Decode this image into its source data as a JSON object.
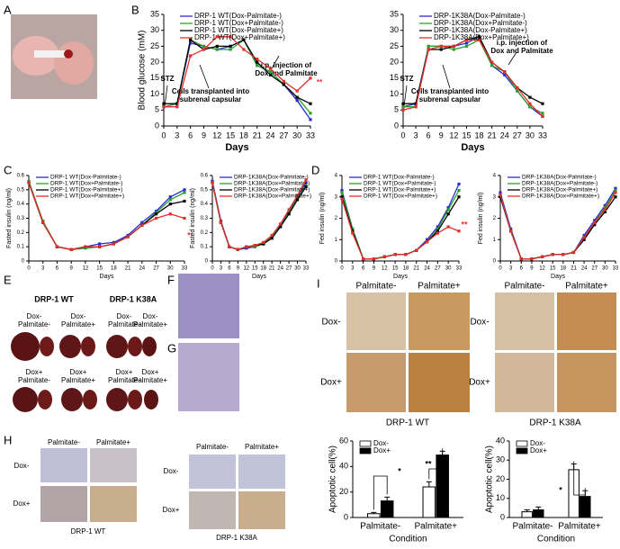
{
  "figure": {
    "panel_labels": [
      "A",
      "B",
      "C",
      "D",
      "E",
      "F",
      "G",
      "H",
      "I"
    ],
    "texts": [
      "DRP-1 WT",
      "DRP-1 K38A",
      "Dox-",
      "Palmitate-",
      "Dox-",
      "Palmitate+",
      "Dox-",
      "Palmitate-",
      "Dox-",
      "Palmitate+",
      "Dox+",
      "Palmitate-",
      "Dox+",
      "Palmitate+",
      "Dox+",
      "Palmitate-",
      "Dox+",
      "Palmitate+",
      "Palmitate-",
      "Palmitate+",
      "Palmitate-",
      "Palmitate+",
      "Dox-",
      "Dox+",
      "Dox-",
      "Dox+",
      "DRP-1 WT",
      "DRP-1 K38A",
      "Palmitate-",
      "Palmitate+",
      "Palmitate-",
      "Palmitate+",
      "Dox-",
      "Dox+",
      "Dox-",
      "Dox+",
      "DRP-1 WT",
      "DRP-1 K38A"
    ]
  },
  "chart_data": [
    {
      "type": "line",
      "ylabel": "Blood glucose (mM)",
      "xlabel": "Days",
      "x": [
        0,
        3,
        6,
        9,
        12,
        15,
        18,
        21,
        24,
        27,
        30,
        33
      ],
      "xlim": [
        0,
        33
      ],
      "xticks": [
        0,
        3,
        6,
        9,
        12,
        15,
        18,
        21,
        24,
        27,
        30,
        33
      ],
      "ylim": [
        0,
        35
      ],
      "yticks": [
        0,
        5,
        10,
        15,
        20,
        25,
        30,
        35
      ],
      "annotations": [
        "STZ",
        "Cells transplanted into",
        "subrenal capsular",
        "i.p. injection of",
        "Dox and Palmitate",
        "**"
      ],
      "series": [
        {
          "name": "DRP-1 WT(Dox-Palmitate-)",
          "color": "#2b2bd6",
          "values": [
            6,
            7,
            26,
            25,
            24,
            25,
            27,
            19,
            17,
            13,
            8,
            2
          ]
        },
        {
          "name": "DRP-1 WT(Dox+Palmitate-)",
          "color": "#2ca02c",
          "values": [
            6,
            7,
            27,
            25,
            24,
            24,
            27,
            19,
            17,
            13,
            9,
            4
          ]
        },
        {
          "name": "DRP-1 WT(Dox-Palmitate+)",
          "color": "#000000",
          "values": [
            7,
            7,
            27,
            24,
            25,
            25,
            27,
            20,
            16,
            13,
            9,
            7
          ]
        },
        {
          "name": "DRP-1 WT(Dox+Palmitate+)",
          "color": "#e0302a",
          "values": [
            6,
            6,
            22,
            24,
            28,
            28,
            24,
            21,
            18,
            14,
            11,
            15
          ]
        }
      ]
    },
    {
      "type": "line",
      "xlabel": "Days",
      "x": [
        0,
        3,
        6,
        9,
        12,
        15,
        18,
        21,
        24,
        27,
        30,
        33
      ],
      "xlim": [
        0,
        33
      ],
      "xticks": [
        0,
        3,
        6,
        9,
        12,
        15,
        18,
        21,
        24,
        27,
        30,
        33
      ],
      "ylim": [
        0,
        35
      ],
      "yticks": [
        0,
        5,
        10,
        15,
        20,
        25,
        30,
        35
      ],
      "annotations": [
        "STZ",
        "Cells transplanted into",
        "subrenal capsular",
        "i.p. injection of",
        "Dox and Palmitate"
      ],
      "series": [
        {
          "name": "DRP-1K38A(Dox-Palmitate-)",
          "color": "#2b2bd6",
          "values": [
            6,
            7,
            25,
            25,
            25,
            26,
            28,
            19,
            16,
            11,
            6,
            3
          ]
        },
        {
          "name": "DRP-1K38A(Dox+Palmitate-)",
          "color": "#2ca02c",
          "values": [
            6,
            6,
            25,
            25,
            24,
            25,
            27,
            19,
            17,
            11,
            6,
            4
          ]
        },
        {
          "name": "DRP-1K38A(Dox-Palmitate+)",
          "color": "#000000",
          "values": [
            7,
            7,
            24,
            24,
            25,
            27,
            28,
            20,
            17,
            12,
            9,
            7
          ]
        },
        {
          "name": "DRP-1K38A(Dox+Palmitate+)",
          "color": "#e0302a",
          "values": [
            5,
            6,
            24,
            25,
            25,
            27,
            27,
            20,
            17,
            12,
            7,
            3
          ]
        }
      ]
    },
    {
      "type": "line",
      "ylabel": "Fasted insulin (ng/ml)",
      "xlabel": "Days",
      "x": [
        0,
        3,
        6,
        9,
        12,
        15,
        18,
        21,
        24,
        27,
        30,
        33
      ],
      "xlim": [
        0,
        33
      ],
      "xticks": [
        0,
        3,
        6,
        9,
        12,
        15,
        18,
        21,
        24,
        27,
        30,
        33
      ],
      "ylim": [
        0,
        0.6
      ],
      "yticks": [
        0,
        0.1,
        0.2,
        0.3,
        0.4,
        0.5,
        0.6
      ],
      "annotations": [
        "*"
      ],
      "series": [
        {
          "name": "DRP-1 WT(Dox-Palmitate-)",
          "color": "#2b2bd6",
          "values": [
            0.55,
            0.27,
            0.1,
            0.08,
            0.1,
            0.12,
            0.13,
            0.18,
            0.27,
            0.35,
            0.45,
            0.5
          ]
        },
        {
          "name": "DRP-1 WT(Dox+Palmitate-)",
          "color": "#2ca02c",
          "values": [
            0.56,
            0.28,
            0.1,
            0.08,
            0.09,
            0.1,
            0.12,
            0.17,
            0.25,
            0.34,
            0.43,
            0.48
          ]
        },
        {
          "name": "DRP-1 WT(Dox-Palmitate+)",
          "color": "#000000",
          "values": [
            0.55,
            0.27,
            0.1,
            0.08,
            0.1,
            0.1,
            0.12,
            0.17,
            0.25,
            0.33,
            0.4,
            0.42
          ]
        },
        {
          "name": "DRP-1 WT(Dox+Palmitate+)",
          "color": "#e0302a",
          "values": [
            0.55,
            0.27,
            0.1,
            0.08,
            0.1,
            0.1,
            0.12,
            0.17,
            0.25,
            0.3,
            0.33,
            0.3
          ]
        }
      ]
    },
    {
      "type": "line",
      "ylabel": "Fasted insulin (ng/ml)",
      "xlabel": "Days",
      "x": [
        0,
        3,
        6,
        9,
        12,
        15,
        18,
        21,
        24,
        27,
        30,
        33
      ],
      "xlim": [
        0,
        33
      ],
      "xticks": [
        0,
        3,
        6,
        9,
        12,
        15,
        18,
        21,
        24,
        27,
        30,
        33
      ],
      "ylim": [
        0,
        0.6
      ],
      "yticks": [
        0,
        0.1,
        0.2,
        0.3,
        0.4,
        0.5,
        0.6
      ],
      "series": [
        {
          "name": "DRP-1K38A(Dox-Palmitate-)",
          "color": "#2b2bd6",
          "values": [
            0.56,
            0.28,
            0.1,
            0.08,
            0.09,
            0.1,
            0.12,
            0.17,
            0.25,
            0.35,
            0.45,
            0.55
          ]
        },
        {
          "name": "DRP-1K38A(Dox+Palmitate-)",
          "color": "#2ca02c",
          "values": [
            0.55,
            0.27,
            0.1,
            0.08,
            0.1,
            0.1,
            0.12,
            0.17,
            0.24,
            0.34,
            0.44,
            0.53
          ]
        },
        {
          "name": "DRP-1K38A(Dox-Palmitate+)",
          "color": "#000000",
          "values": [
            0.55,
            0.27,
            0.1,
            0.08,
            0.1,
            0.11,
            0.12,
            0.16,
            0.24,
            0.33,
            0.43,
            0.52
          ]
        },
        {
          "name": "DRP-1K38A(Dox+Palmitate+)",
          "color": "#e0302a",
          "values": [
            0.55,
            0.27,
            0.1,
            0.08,
            0.1,
            0.11,
            0.13,
            0.18,
            0.26,
            0.36,
            0.46,
            0.57
          ]
        }
      ]
    },
    {
      "type": "line",
      "ylabel": "Fed insulin (ng/ml)",
      "xlabel": "Days",
      "x": [
        0,
        3,
        6,
        9,
        12,
        15,
        18,
        21,
        24,
        27,
        30,
        33
      ],
      "xlim": [
        0,
        33
      ],
      "xticks": [
        0,
        3,
        6,
        9,
        12,
        15,
        18,
        21,
        24,
        27,
        30,
        33
      ],
      "ylim": [
        0,
        4
      ],
      "yticks": [
        0,
        1,
        2,
        3,
        4
      ],
      "annotations": [
        "**"
      ],
      "series": [
        {
          "name": "DRP-1 WT(Dox-Palmitate-)",
          "color": "#2b2bd6",
          "values": [
            3.3,
            1.5,
            0.1,
            0.1,
            0.2,
            0.3,
            0.3,
            0.5,
            1.0,
            1.6,
            2.5,
            3.6
          ]
        },
        {
          "name": "DRP-1 WT(Dox+Palmitate-)",
          "color": "#2ca02c",
          "values": [
            3.2,
            1.5,
            0.1,
            0.1,
            0.2,
            0.3,
            0.3,
            0.5,
            0.9,
            1.5,
            2.4,
            3.3
          ]
        },
        {
          "name": "DRP-1 WT(Dox-Palmitate+)",
          "color": "#000000",
          "values": [
            3.0,
            1.4,
            0.1,
            0.1,
            0.2,
            0.3,
            0.3,
            0.5,
            0.9,
            1.4,
            2.2,
            3.0
          ]
        },
        {
          "name": "DRP-1 WT(Dox+Palmitate+)",
          "color": "#e0302a",
          "values": [
            2.9,
            1.3,
            0.1,
            0.1,
            0.2,
            0.3,
            0.3,
            0.5,
            0.9,
            1.3,
            1.6,
            1.4
          ]
        }
      ]
    },
    {
      "type": "line",
      "ylabel": "Fed insulin (ng/ml)",
      "xlabel": "Days",
      "x": [
        0,
        3,
        6,
        9,
        12,
        15,
        18,
        21,
        24,
        27,
        30,
        33
      ],
      "xlim": [
        0,
        33
      ],
      "xticks": [
        0,
        3,
        6,
        9,
        12,
        15,
        18,
        21,
        24,
        27,
        30,
        33
      ],
      "ylim": [
        0,
        4
      ],
      "yticks": [
        0,
        1,
        2,
        3,
        4
      ],
      "series": [
        {
          "name": "DRP-1K38A(Dox-Palmitate-)",
          "color": "#2b2bd6",
          "values": [
            3.2,
            1.5,
            0.1,
            0.1,
            0.2,
            0.3,
            0.3,
            0.4,
            1.2,
            1.9,
            2.6,
            3.4
          ]
        },
        {
          "name": "DRP-1K38A(Dox+Palmitate-)",
          "color": "#2ca02c",
          "values": [
            3.1,
            1.4,
            0.1,
            0.1,
            0.2,
            0.3,
            0.3,
            0.4,
            1.1,
            1.8,
            2.5,
            3.3
          ]
        },
        {
          "name": "DRP-1K38A(Dox-Palmitate+)",
          "color": "#000000",
          "values": [
            3.0,
            1.4,
            0.1,
            0.1,
            0.2,
            0.3,
            0.3,
            0.4,
            1.0,
            1.7,
            2.3,
            3.0
          ]
        },
        {
          "name": "DRP-1K38A(Dox+Palmitate+)",
          "color": "#e0302a",
          "values": [
            3.1,
            1.4,
            0.1,
            0.1,
            0.2,
            0.3,
            0.3,
            0.4,
            1.1,
            1.8,
            2.4,
            3.2
          ]
        }
      ]
    },
    {
      "type": "bar",
      "ylabel": "Apoptotic cell(%)",
      "xlabel": "Condition",
      "categories": [
        "Palmitate-",
        "Palmitate+"
      ],
      "ylim": [
        0,
        60
      ],
      "yticks": [
        0,
        20,
        40,
        60
      ],
      "annotations": [
        "*",
        "**"
      ],
      "series": [
        {
          "name": "Dox-",
          "color": "#ffffff",
          "values": [
            3,
            24
          ],
          "errors": [
            1,
            4
          ]
        },
        {
          "name": "Dox+",
          "color": "#000000",
          "values": [
            13,
            49
          ],
          "errors": [
            3,
            3
          ]
        }
      ]
    },
    {
      "type": "bar",
      "ylabel": "Apoptotic cell(%)",
      "xlabel": "Condition",
      "categories": [
        "Palmitate-",
        "Palmitate+"
      ],
      "ylim": [
        0,
        40
      ],
      "yticks": [
        0,
        10,
        20,
        30,
        40
      ],
      "annotations": [
        "*"
      ],
      "series": [
        {
          "name": "Dox-",
          "color": "#ffffff",
          "values": [
            3,
            25
          ],
          "errors": [
            1,
            3
          ]
        },
        {
          "name": "Dox+",
          "color": "#000000",
          "values": [
            4,
            11
          ],
          "errors": [
            1.5,
            3
          ]
        }
      ]
    }
  ]
}
